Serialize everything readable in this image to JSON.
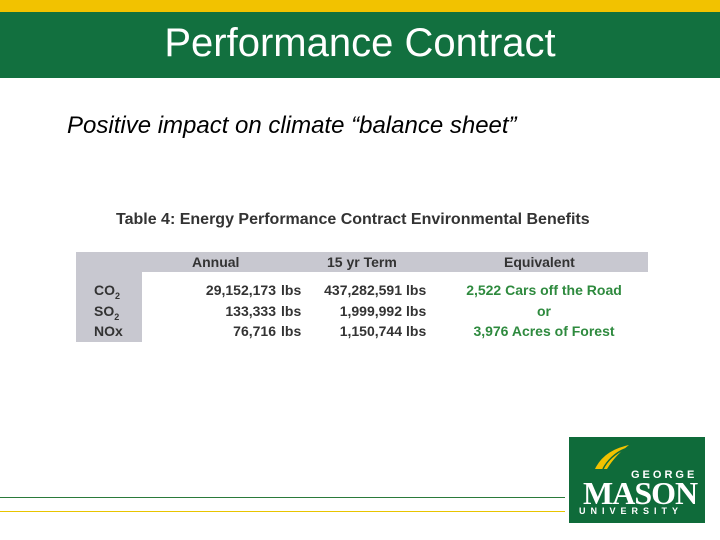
{
  "slide": {
    "title": "Performance Contract",
    "subtitle": "Positive impact on climate “balance sheet”"
  },
  "table": {
    "caption_number": "Table 4:",
    "caption_text": "Energy Performance Contract Environmental Benefits",
    "headers": [
      "Annual",
      "15 yr Term",
      "Equivalent"
    ],
    "rows": [
      {
        "chem_main": "CO",
        "chem_sub": "2",
        "annual": "29,152,173",
        "annual_unit": "lbs",
        "term": "437,282,591",
        "term_unit": "lbs",
        "equivalent": "2,522 Cars off the Road"
      },
      {
        "chem_main": "SO",
        "chem_sub": "2",
        "annual": "133,333",
        "annual_unit": "lbs",
        "term": "1,999,992",
        "term_unit": "lbs",
        "equivalent": "or"
      },
      {
        "chem_main": "NOx",
        "chem_sub": "",
        "annual": "76,716",
        "annual_unit": "lbs",
        "term": "1,150,744",
        "term_unit": "lbs",
        "equivalent": "3,976 Acres of Forest"
      }
    ]
  },
  "logo": {
    "line1": "GEORGE",
    "line2": "MASON",
    "line3": "UNIVERSITY"
  },
  "colors": {
    "header_green": "#12703f",
    "top_gold": "#f2c200",
    "equivalent_green": "#2e8a3e"
  }
}
